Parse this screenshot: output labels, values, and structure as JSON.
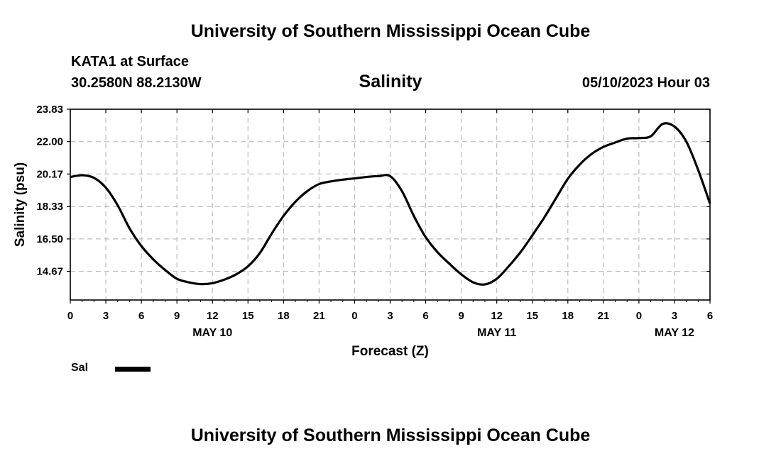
{
  "header": {
    "title": "University of Southern Mississippi Ocean Cube",
    "station": "KATA1 at Surface",
    "coordinates": "30.2580N  88.2130W",
    "variable": "Salinity",
    "datetime": "05/10/2023 Hour 03"
  },
  "footer": {
    "title": "University of Southern Mississippi Ocean Cube"
  },
  "chart_data": {
    "type": "line",
    "title": "Salinity",
    "xlabel": "Forecast (Z)",
    "ylabel": "Salinity (psu)",
    "xlim": [
      0,
      54
    ],
    "ylim": [
      13.05,
      23.83
    ],
    "x_tick_values": [
      0,
      3,
      6,
      9,
      12,
      15,
      18,
      21,
      24,
      27,
      30,
      33,
      36,
      39,
      42,
      45,
      48,
      51,
      54
    ],
    "x_tick_labels": [
      "0",
      "3",
      "6",
      "9",
      "12",
      "15",
      "18",
      "21",
      "0",
      "3",
      "6",
      "9",
      "12",
      "15",
      "18",
      "21",
      "0",
      "3",
      "6"
    ],
    "day_labels": [
      {
        "x": 12,
        "label": "MAY 10"
      },
      {
        "x": 36,
        "label": "MAY 11"
      },
      {
        "x": 51,
        "label": "MAY 12"
      }
    ],
    "y_ticks": [
      14.67,
      16.5,
      18.33,
      20.17,
      22.0,
      23.83
    ],
    "y_tick_labels": [
      "14.67",
      "16.50",
      "18.33",
      "20.17",
      "22.00",
      "23.83"
    ],
    "grid": true,
    "series": [
      {
        "name": "Sal",
        "color": "#000000",
        "x": [
          0,
          1,
          2,
          3,
          4,
          5,
          6,
          7,
          8,
          9,
          10,
          11,
          12,
          13,
          14,
          15,
          16,
          17,
          18,
          19,
          20,
          21,
          22,
          23,
          24,
          25,
          26,
          27,
          28,
          29,
          30,
          31,
          32,
          33,
          34,
          35,
          36,
          37,
          38,
          39,
          40,
          41,
          42,
          43,
          44,
          45,
          46,
          47,
          48,
          49,
          50,
          51,
          52,
          53,
          54
        ],
        "y": [
          20.0,
          20.1,
          19.95,
          19.4,
          18.4,
          17.1,
          16.1,
          15.35,
          14.75,
          14.25,
          14.05,
          13.95,
          14.0,
          14.2,
          14.5,
          14.95,
          15.7,
          16.8,
          17.8,
          18.6,
          19.2,
          19.6,
          19.75,
          19.85,
          19.92,
          20.0,
          20.05,
          20.05,
          19.2,
          17.8,
          16.6,
          15.75,
          15.1,
          14.5,
          14.05,
          13.93,
          14.25,
          14.95,
          15.75,
          16.7,
          17.7,
          18.8,
          19.9,
          20.7,
          21.3,
          21.7,
          21.95,
          22.17,
          22.2,
          22.3,
          23.0,
          22.85,
          22.0,
          20.4,
          18.5
        ]
      }
    ],
    "legend": [
      {
        "label": "Sal"
      }
    ]
  }
}
